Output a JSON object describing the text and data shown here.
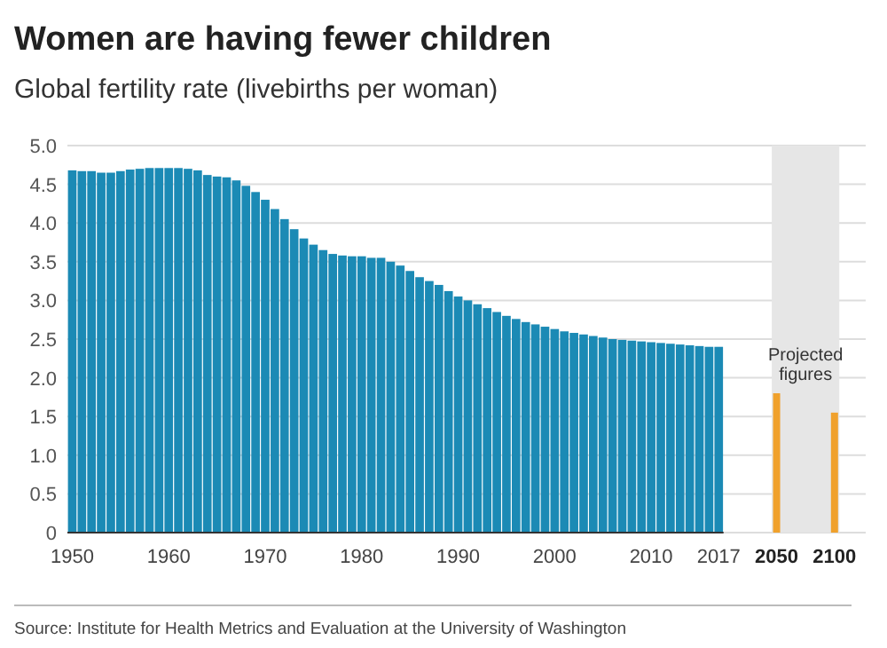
{
  "chart_data": {
    "type": "bar",
    "title": "Women are having fewer children",
    "subtitle": "Global fertility rate (livebirths per woman)",
    "categories": [
      "1950",
      null,
      null,
      null,
      null,
      null,
      null,
      null,
      null,
      null,
      "1960",
      null,
      null,
      null,
      null,
      null,
      null,
      null,
      null,
      null,
      "1970",
      null,
      null,
      null,
      null,
      null,
      null,
      null,
      null,
      null,
      "1980",
      null,
      null,
      null,
      null,
      null,
      null,
      null,
      null,
      null,
      "1990",
      null,
      null,
      null,
      null,
      null,
      null,
      null,
      null,
      null,
      "2000",
      null,
      null,
      null,
      null,
      null,
      null,
      null,
      null,
      null,
      "2010",
      null,
      null,
      null,
      null,
      null,
      null,
      "2017",
      null,
      null,
      null,
      null,
      null,
      "2050",
      null,
      null,
      null,
      null,
      null,
      "2100"
    ],
    "values": [
      4.68,
      4.67,
      4.67,
      4.65,
      4.65,
      4.67,
      4.69,
      4.7,
      4.71,
      4.71,
      4.71,
      4.71,
      4.7,
      4.68,
      4.62,
      4.6,
      4.59,
      4.55,
      4.48,
      4.4,
      4.3,
      4.18,
      4.05,
      3.92,
      3.8,
      3.72,
      3.65,
      3.6,
      3.58,
      3.57,
      3.57,
      3.55,
      3.55,
      3.5,
      3.45,
      3.38,
      3.3,
      3.25,
      3.2,
      3.12,
      3.05,
      3.0,
      2.95,
      2.9,
      2.85,
      2.8,
      2.76,
      2.72,
      2.69,
      2.66,
      2.63,
      2.6,
      2.58,
      2.56,
      2.54,
      2.52,
      2.5,
      2.49,
      2.48,
      2.47,
      2.46,
      2.45,
      2.44,
      2.43,
      2.42,
      2.41,
      2.4,
      2.4,
      null,
      null,
      null,
      null,
      null,
      1.8,
      null,
      null,
      null,
      null,
      null,
      1.55
    ],
    "colors": [
      "#1b8ab5",
      "#1b8ab5",
      "#1b8ab5",
      "#1b8ab5",
      "#1b8ab5",
      "#1b8ab5",
      "#1b8ab5",
      "#1b8ab5",
      "#1b8ab5",
      "#1b8ab5",
      "#1b8ab5",
      "#1b8ab5",
      "#1b8ab5",
      "#1b8ab5",
      "#1b8ab5",
      "#1b8ab5",
      "#1b8ab5",
      "#1b8ab5",
      "#1b8ab5",
      "#1b8ab5",
      "#1b8ab5",
      "#1b8ab5",
      "#1b8ab5",
      "#1b8ab5",
      "#1b8ab5",
      "#1b8ab5",
      "#1b8ab5",
      "#1b8ab5",
      "#1b8ab5",
      "#1b8ab5",
      "#1b8ab5",
      "#1b8ab5",
      "#1b8ab5",
      "#1b8ab5",
      "#1b8ab5",
      "#1b8ab5",
      "#1b8ab5",
      "#1b8ab5",
      "#1b8ab5",
      "#1b8ab5",
      "#1b8ab5",
      "#1b8ab5",
      "#1b8ab5",
      "#1b8ab5",
      "#1b8ab5",
      "#1b8ab5",
      "#1b8ab5",
      "#1b8ab5",
      "#1b8ab5",
      "#1b8ab5",
      "#1b8ab5",
      "#1b8ab5",
      "#1b8ab5",
      "#1b8ab5",
      "#1b8ab5",
      "#1b8ab5",
      "#1b8ab5",
      "#1b8ab5",
      "#1b8ab5",
      "#1b8ab5",
      "#1b8ab5",
      "#1b8ab5",
      "#1b8ab5",
      "#1b8ab5",
      "#1b8ab5",
      "#1b8ab5",
      "#1b8ab5",
      "#1b8ab5",
      null,
      null,
      null,
      null,
      null,
      "#f0a12c",
      null,
      null,
      null,
      null,
      null,
      "#f0a12c"
    ],
    "ylim": [
      0,
      5
    ],
    "yticks": [
      {
        "value": 0,
        "label": "0"
      },
      {
        "value": 0.5,
        "label": "0.5"
      },
      {
        "value": 1,
        "label": "1.0"
      },
      {
        "value": 1.5,
        "label": "1.5"
      },
      {
        "value": 2,
        "label": "2.0"
      },
      {
        "value": 2.5,
        "label": "2.5"
      },
      {
        "value": 3,
        "label": "3.0"
      },
      {
        "value": 3.5,
        "label": "3.5"
      },
      {
        "value": 4,
        "label": "4.0"
      },
      {
        "value": 4.5,
        "label": "4.5"
      },
      {
        "value": 5,
        "label": "5.0"
      }
    ],
    "grid": "y",
    "bands": [
      {
        "axis": "x",
        "from": "2050",
        "to": "2100",
        "label": "Projected figures",
        "color": "#e6e6e6"
      }
    ],
    "annotations": [
      "Source: Institute for Health Metrics and Evaluation at the University of Washington"
    ]
  }
}
